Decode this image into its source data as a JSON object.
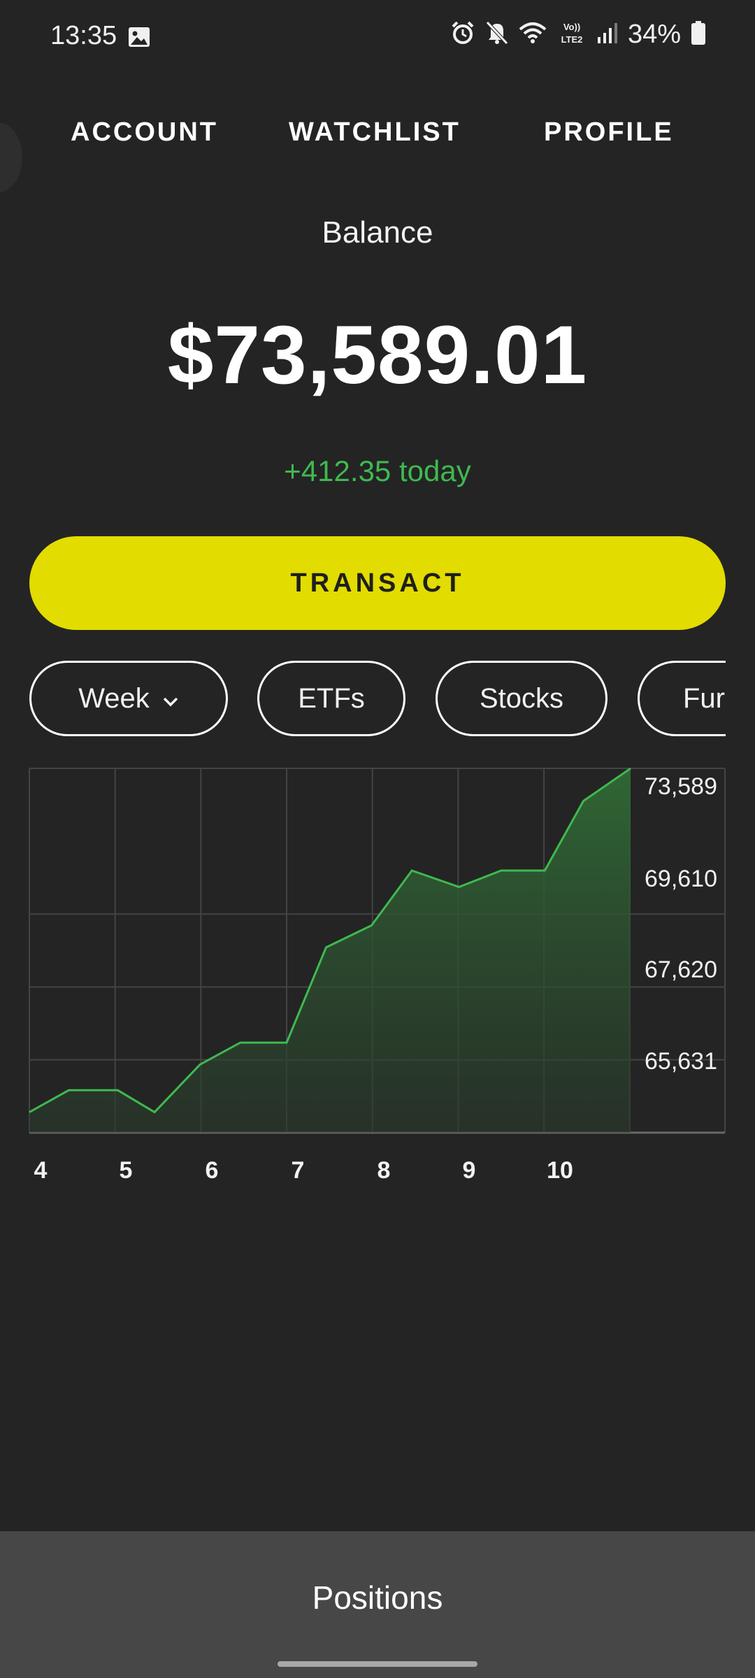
{
  "status_bar": {
    "time": "13:35",
    "battery": "34%",
    "icons": [
      "gallery-icon",
      "alarm-icon",
      "mute-icon",
      "wifi-icon",
      "volte-icon",
      "signal-icon",
      "battery-icon"
    ]
  },
  "nav": {
    "tabs": [
      {
        "label": "ACCOUNT"
      },
      {
        "label": "WATCHLIST"
      },
      {
        "label": "PROFILE"
      }
    ]
  },
  "balance": {
    "label": "Balance",
    "value": "$73,589.01",
    "change": "+412.35 today"
  },
  "actions": {
    "transact_label": "TRANSACT"
  },
  "filters": [
    {
      "label": "Week",
      "dropdown": true
    },
    {
      "label": "ETFs",
      "dropdown": false
    },
    {
      "label": "Stocks",
      "dropdown": false
    },
    {
      "label": "Fur",
      "dropdown": false
    }
  ],
  "colors": {
    "accent": "#e2dc00",
    "positive": "#3fb950",
    "background": "#242424",
    "bottom_bar": "#474747"
  },
  "chart_data": {
    "type": "area",
    "x_tick_labels": [
      "4",
      "5",
      "6",
      "7",
      "8",
      "9",
      "10"
    ],
    "y_tick_labels": [
      "73,589",
      "69,610",
      "67,620",
      "65,631"
    ],
    "ylim": [
      63641,
      73589
    ],
    "x": [
      4.0,
      4.46,
      5.03,
      5.46,
      5.99,
      6.46,
      7.0,
      7.46,
      7.99,
      8.46,
      9.01,
      9.5,
      10.01,
      10.46,
      11.01
    ],
    "values": [
      64200,
      64800,
      64800,
      64200,
      65500,
      66100,
      66100,
      68700,
      69300,
      70800,
      70350,
      70800,
      70800,
      72700,
      73589
    ],
    "grid": true
  },
  "bottom": {
    "positions_label": "Positions"
  }
}
